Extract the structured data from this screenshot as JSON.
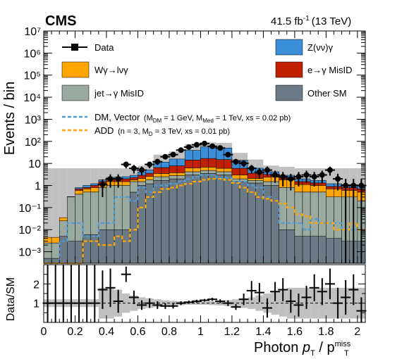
{
  "header": {
    "experiment": "CMS",
    "lumi_value": "41.5 fb",
    "lumi_exponent": "-1",
    "energy": "(13 TeV)"
  },
  "axes": {
    "ylabel_main": "Events / bin",
    "ylabel_ratio": "Data/SM",
    "xlabel_main": "Photon ",
    "xlabel_pt": "p",
    "xlabel_pt_sub": "T",
    "xlabel_slash": " / p",
    "xlabel_miss_sup": "miss",
    "xlabel_miss_sub": "T"
  },
  "legend": {
    "data": "Data",
    "zvv": "Z(νν)γ",
    "wg": "Wγ→lνγ",
    "eg": "e→γ MisID",
    "jet": "jet→γ MisID",
    "other": "Other SM",
    "dm_main": "DM, Vector",
    "dm_detail": "(M",
    "dm_detail_sub": "DM",
    "dm_detail_mid": " = 1 GeV, M",
    "dm_detail_sub2": "Med",
    "dm_detail_end": " = 1 TeV, xs = 0.02 pb)",
    "add_main": "ADD",
    "add_detail": "(n = 3, M",
    "add_detail_sub": "D",
    "add_detail_end": " = 3 TeV, xs = 0.01 pb)"
  },
  "colors": {
    "zvv": "#3b8ed8",
    "wg": "#ffa500",
    "eg": "#c02000",
    "jet": "#9aaaa0",
    "other": "#6c7a86",
    "band": "#c0c0c0",
    "dm": "#4e9bd6",
    "add": "#ffa500"
  },
  "chart_data": {
    "type": "bar",
    "stacked": true,
    "xlim": [
      0,
      2.05
    ],
    "ylim_main": [
      0.0003,
      10000000
    ],
    "yscale_main": "log",
    "ylim_ratio": [
      0,
      3
    ],
    "x_ticks": [
      "0",
      "0.2",
      "0.4",
      "0.6",
      "0.8",
      "1",
      "1.2",
      "1.4",
      "1.6",
      "1.8",
      "2"
    ],
    "y_ticks_main": [
      "10⁻³",
      "10⁻²",
      "10⁻¹",
      "1",
      "10",
      "10²",
      "10³",
      "10⁴",
      "10⁵",
      "10⁶",
      "10⁷"
    ],
    "y_ticks_ratio": [
      "1",
      "2"
    ],
    "bin_edges": [
      0,
      0.05,
      0.1,
      0.15,
      0.2,
      0.25,
      0.3,
      0.35,
      0.4,
      0.45,
      0.5,
      0.55,
      0.6,
      0.65,
      0.7,
      0.75,
      0.8,
      0.85,
      0.9,
      0.95,
      1.0,
      1.05,
      1.1,
      1.15,
      1.2,
      1.25,
      1.3,
      1.35,
      1.4,
      1.45,
      1.5,
      1.55,
      1.6,
      1.65,
      1.7,
      1.75,
      1.8,
      1.85,
      1.9,
      1.95,
      2.0,
      2.05
    ],
    "series": [
      {
        "name": "Other SM",
        "key": "other",
        "values": [
          0.0005,
          0.0005,
          0.005,
          0.003,
          0.003,
          0.006,
          0.006,
          0.01,
          0.01,
          0.01,
          0.01,
          0.5,
          1.0,
          1.2,
          1.7,
          1.7,
          2.0,
          2.0,
          3.0,
          3.0,
          3.5,
          3.5,
          3.0,
          3.0,
          1.5,
          1.5,
          1.3,
          1.3,
          1.0,
          1.0,
          0.01,
          0.01,
          0.005,
          0.005,
          0.005,
          0.005,
          0.004,
          0.004,
          0.003,
          0.003,
          0.003
        ]
      },
      {
        "name": "jet→γ MisID",
        "key": "jet",
        "values": [
          0.002,
          0.002,
          0.02,
          0.3,
          0.4,
          0.5,
          0.5,
          0.8,
          1.0,
          1.0,
          1.0,
          1.0,
          0.5,
          0.6,
          0.8,
          0.8,
          0.8,
          0.8,
          1.2,
          1.2,
          1.3,
          1.3,
          1.2,
          1.2,
          0.5,
          0.5,
          0.4,
          0.4,
          0.5,
          0.5,
          0.8,
          0.8,
          0.5,
          0.5,
          0.5,
          0.5,
          0.3,
          0.3,
          0.3,
          0.3,
          0.2
        ]
      },
      {
        "name": "Wγ→lνγ",
        "key": "wg",
        "values": [
          0.002,
          0.002,
          0.01,
          0.01,
          0.2,
          0.2,
          0.3,
          0.4,
          0.5,
          0.5,
          0.5,
          0.3,
          0.6,
          0.8,
          1.0,
          1.0,
          1.0,
          1.0,
          2.0,
          2.0,
          2.0,
          2.0,
          1.8,
          1.8,
          1.0,
          1.0,
          0.4,
          0.4,
          0.9,
          0.9,
          1.0,
          1.0,
          0.6,
          0.6,
          0.5,
          0.5,
          0.4,
          0.4,
          0.3,
          0.3,
          0.3
        ]
      },
      {
        "name": "e→γ MisID",
        "key": "eg",
        "values": [
          0.0,
          0.0,
          0.0,
          0.0,
          0.1,
          0.1,
          0.2,
          0.3,
          0.4,
          0.4,
          0.5,
          0.5,
          0.8,
          1.0,
          3.0,
          3.0,
          4.0,
          4.0,
          8.0,
          8.0,
          10.0,
          10.0,
          9.0,
          9.0,
          3.0,
          3.0,
          1.5,
          1.5,
          0.8,
          0.8,
          0.5,
          0.5,
          0.4,
          0.4,
          0.3,
          0.3,
          0.2,
          0.2,
          0.2,
          0.2,
          0.2
        ]
      },
      {
        "name": "Z(νν)γ",
        "key": "zvv",
        "values": [
          0.0,
          0.0,
          0.0,
          0.0,
          0.1,
          0.2,
          0.2,
          0.3,
          0.4,
          0.5,
          0.5,
          0.6,
          1.2,
          1.5,
          5.0,
          5.0,
          8.0,
          8.0,
          25.0,
          25.0,
          40.0,
          40.0,
          35.0,
          35.0,
          8.0,
          8.0,
          2.5,
          2.5,
          1.0,
          1.0,
          0.6,
          0.6,
          0.5,
          0.5,
          0.4,
          0.4,
          0.3,
          0.3,
          0.3,
          0.3,
          0.3
        ]
      }
    ],
    "uncertainty_band_main": {
      "low": [
        0.0003,
        0.0003,
        0.0003,
        0.0003,
        0.0003,
        0.0003,
        0.0003,
        0.0003,
        0.0003,
        0.0003,
        0.0003,
        0.0003,
        0.5,
        1.5,
        6,
        6,
        8,
        8,
        25,
        25,
        35,
        35,
        30,
        30,
        8,
        8,
        3,
        3,
        2.5,
        2.5,
        1.5,
        1.5,
        0.8,
        0.8,
        0.7,
        0.7,
        0.6,
        0.6,
        0.5,
        0.5,
        0.5
      ],
      "high": [
        6,
        6,
        6,
        6,
        6,
        6,
        6,
        6,
        6,
        6,
        6,
        6,
        8,
        10,
        25,
        25,
        35,
        35,
        75,
        75,
        90,
        90,
        85,
        85,
        30,
        30,
        15,
        15,
        8,
        8,
        7,
        7,
        6,
        6,
        6,
        6,
        6,
        6,
        6,
        6,
        6
      ]
    },
    "data_points": {
      "x": [
        0.375,
        0.425,
        0.475,
        0.525,
        0.575,
        0.625,
        0.675,
        0.725,
        0.775,
        0.825,
        0.875,
        0.925,
        0.975,
        1.025,
        1.075,
        1.125,
        1.175,
        1.225,
        1.275,
        1.325,
        1.375,
        1.425,
        1.475,
        1.525,
        1.575,
        1.625,
        1.675,
        1.725,
        1.775,
        1.825,
        1.875,
        1.925,
        1.975,
        2.025
      ],
      "y": [
        1.1,
        2.0,
        2.0,
        9.0,
        6.0,
        5.0,
        9.0,
        12.0,
        20.0,
        25.0,
        40.0,
        55.0,
        70.0,
        80.0,
        60.0,
        50.0,
        25.0,
        12.0,
        10.0,
        6.0,
        4.0,
        5.0,
        3.0,
        2.5,
        2.0,
        2.5,
        3.0,
        2.5,
        3.0,
        5.0,
        2.0,
        1.0,
        1.0,
        1.0
      ],
      "y_err": [
        0.8,
        1.2,
        1.2,
        3.0,
        2.5,
        2.2,
        3.0,
        3.5,
        4.5,
        5.0,
        6.5,
        7.5,
        8.5,
        9.0,
        7.8,
        7.0,
        5.0,
        3.5,
        3.2,
        2.5,
        2.0,
        2.2,
        1.7,
        1.6,
        1.4,
        1.6,
        1.7,
        1.6,
        1.7,
        2.2,
        1.4,
        1.0,
        1.0,
        1.0
      ]
    },
    "signal_dm": {
      "name": "DM, Vector",
      "values": [
        0.0003,
        0.0003,
        0.003,
        0.02,
        0.02,
        0.005,
        0.005,
        0.02,
        0.02,
        0.3,
        0.3,
        0.2,
        0.8,
        0.5,
        1.0,
        1.0,
        1.2,
        1.5,
        2.0,
        2.5,
        3.0,
        3.0,
        2.2,
        2.2,
        1.5,
        1.5,
        1.0,
        0.8,
        0.3,
        0.2,
        0.02,
        0.02,
        0.02,
        0.01,
        0.03,
        0.02,
        0.02,
        0.02,
        0.01,
        0.01,
        0.01
      ]
    },
    "signal_add": {
      "name": "ADD",
      "values": [
        0.0003,
        0.0003,
        0.0003,
        0.0003,
        0.0003,
        0.003,
        0.003,
        0.002,
        0.002,
        0.005,
        0.003,
        0.01,
        0.1,
        0.3,
        0.5,
        0.7,
        0.8,
        1.0,
        1.2,
        1.5,
        1.8,
        2.0,
        2.0,
        1.8,
        1.3,
        0.8,
        0.5,
        0.3,
        0.25,
        0.2,
        0.15,
        0.1,
        0.05,
        0.04,
        0.02,
        0.02,
        0.02,
        0.01,
        0.01,
        0.02,
        0.01
      ]
    },
    "ratio": {
      "x": [
        0.025,
        0.075,
        0.125,
        0.175,
        0.225,
        0.275,
        0.325,
        0.375,
        0.425,
        0.475,
        0.525,
        0.575,
        0.625,
        0.675,
        0.725,
        0.775,
        0.825,
        0.875,
        0.925,
        0.975,
        1.025,
        1.075,
        1.125,
        1.175,
        1.225,
        1.275,
        1.325,
        1.375,
        1.425,
        1.475,
        1.525,
        1.575,
        1.625,
        1.675,
        1.725,
        1.775,
        1.825,
        1.875,
        1.925,
        1.975,
        2.025
      ],
      "y": [
        1.0,
        1.0,
        1.0,
        1.0,
        1.0,
        1.0,
        1.0,
        1.7,
        1.8,
        1.1,
        2.5,
        1.3,
        0.9,
        1.0,
        0.9,
        0.85,
        0.85,
        1.0,
        1.05,
        1.1,
        1.15,
        1.2,
        1.1,
        1.0,
        0.8,
        1.2,
        1.65,
        1.55,
        0.75,
        1.6,
        1.7,
        1.1,
        0.9,
        1.3,
        1.8,
        1.6,
        2.0,
        1.0,
        1.3,
        1.7,
        0.6
      ],
      "y_err": [
        3.5,
        3.5,
        3.5,
        3.5,
        3.5,
        3.5,
        3.5,
        1.0,
        1.0,
        0.6,
        0.4,
        0.35,
        0.25,
        0.25,
        0.2,
        0.15,
        0.13,
        0.1,
        0.08,
        0.08,
        0.07,
        0.08,
        0.1,
        0.15,
        0.15,
        0.3,
        0.5,
        0.5,
        0.5,
        0.5,
        0.6,
        0.6,
        0.6,
        0.6,
        0.7,
        0.7,
        0.8,
        0.8,
        0.9,
        0.8,
        0.7
      ],
      "band_half": [
        0.2,
        0.2,
        0.2,
        0.2,
        0.2,
        0.2,
        0.2,
        0.8,
        0.8,
        0.7,
        0.5,
        0.4,
        0.3,
        0.25,
        0.2,
        0.15,
        0.12,
        0.1,
        0.08,
        0.08,
        0.08,
        0.1,
        0.12,
        0.15,
        0.2,
        0.25,
        0.3,
        0.4,
        0.5,
        0.6,
        0.7,
        0.8,
        0.8,
        0.8,
        0.8,
        0.8,
        0.8,
        0.8,
        0.8,
        0.8,
        0.8
      ]
    }
  }
}
